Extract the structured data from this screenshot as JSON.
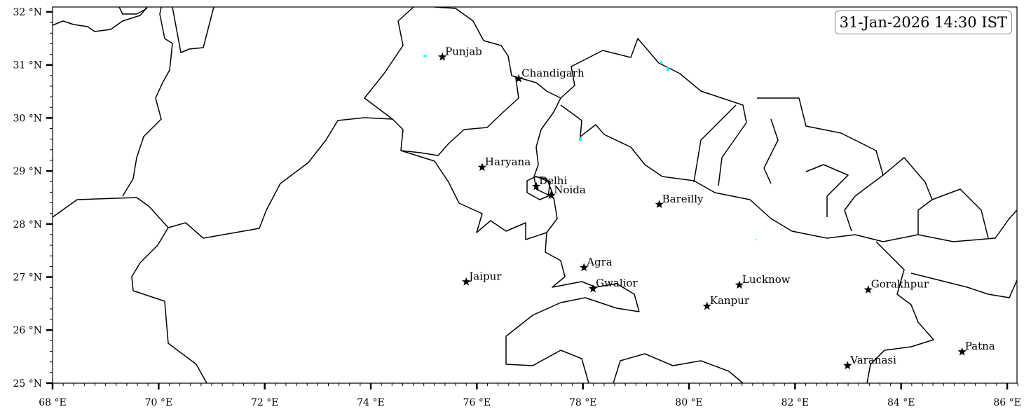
{
  "map": {
    "extent": {
      "lon_min": 68,
      "lon_max": 86.2,
      "lat_min": 25,
      "lat_max": 32.1
    },
    "timestamp": "31-Jan-2026 14:30 IST",
    "x_ticks": [
      {
        "value": 68,
        "label": "68 °E"
      },
      {
        "value": 70,
        "label": "70 °E"
      },
      {
        "value": 72,
        "label": "72 °E"
      },
      {
        "value": 74,
        "label": "74 °E"
      },
      {
        "value": 76,
        "label": "76 °E"
      },
      {
        "value": 78,
        "label": "78 °E"
      },
      {
        "value": 80,
        "label": "80 °E"
      },
      {
        "value": 82,
        "label": "82 °E"
      },
      {
        "value": 84,
        "label": "84 °E"
      },
      {
        "value": 86,
        "label": "86 °E"
      }
    ],
    "y_ticks": [
      {
        "value": 25,
        "label": "25 °N"
      },
      {
        "value": 26,
        "label": "26 °N"
      },
      {
        "value": 27,
        "label": "27 °N"
      },
      {
        "value": 28,
        "label": "28 °N"
      },
      {
        "value": 29,
        "label": "29 °N"
      },
      {
        "value": 30,
        "label": "30 °N"
      },
      {
        "value": 31,
        "label": "31 °N"
      },
      {
        "value": 32,
        "label": "32 °N"
      }
    ],
    "marker_icon": "star-icon",
    "cities": [
      {
        "name": "Punjab",
        "lon": 75.35,
        "lat": 31.15
      },
      {
        "name": "Chandigarh",
        "lon": 76.79,
        "lat": 30.74
      },
      {
        "name": "Haryana",
        "lon": 76.1,
        "lat": 29.07
      },
      {
        "name": "Delhi",
        "lon": 77.12,
        "lat": 28.71
      },
      {
        "name": "Noida",
        "lon": 77.4,
        "lat": 28.54
      },
      {
        "name": "Bareilly",
        "lon": 79.44,
        "lat": 28.37
      },
      {
        "name": "Agra",
        "lon": 78.02,
        "lat": 27.18
      },
      {
        "name": "Jaipur",
        "lon": 75.8,
        "lat": 26.91
      },
      {
        "name": "Gwalior",
        "lon": 78.19,
        "lat": 26.78
      },
      {
        "name": "Lucknow",
        "lon": 80.95,
        "lat": 26.85
      },
      {
        "name": "Kanpur",
        "lon": 80.34,
        "lat": 26.45
      },
      {
        "name": "Gorakhpur",
        "lon": 83.38,
        "lat": 26.76
      },
      {
        "name": "Patna",
        "lon": 85.15,
        "lat": 25.59
      },
      {
        "name": "Varanasi",
        "lon": 82.99,
        "lat": 25.33
      }
    ],
    "colors": {
      "border": "#000000",
      "highlight": "#00ffff"
    }
  }
}
